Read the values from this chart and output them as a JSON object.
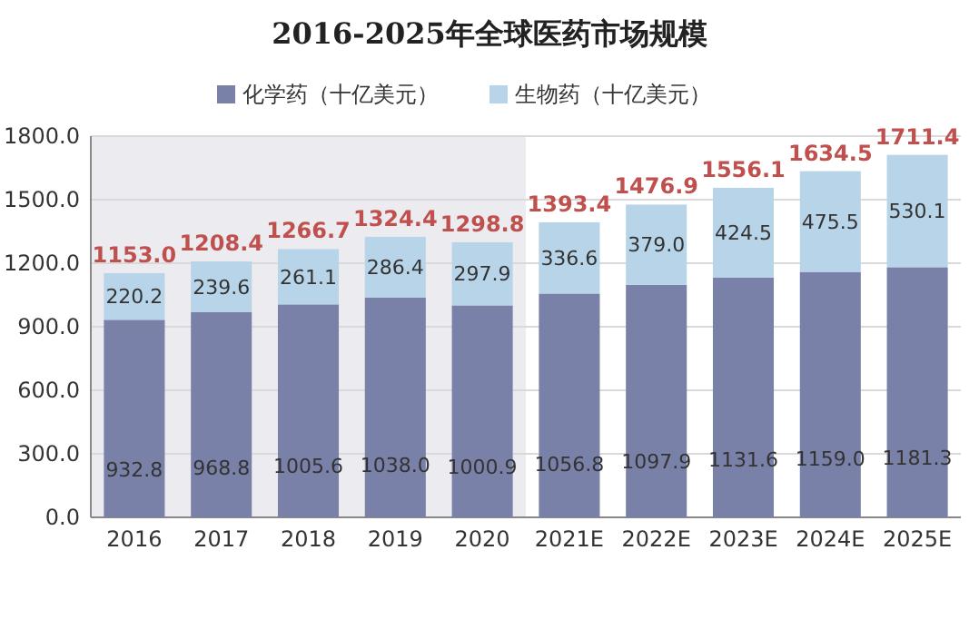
{
  "chart_data": {
    "type": "bar",
    "title": "2016-2025年全球医药市场规模",
    "stacked": true,
    "categories": [
      "2016",
      "2017",
      "2018",
      "2019",
      "2020",
      "2021E",
      "2022E",
      "2023E",
      "2024E",
      "2025E"
    ],
    "series": [
      {
        "name": "化学药（十亿美元）",
        "color": "#7a81a8",
        "values": [
          932.8,
          968.8,
          1005.6,
          1038,
          1000.9,
          1056.8,
          1097.9,
          1131.6,
          1159,
          1181.3
        ],
        "value_labels": [
          "932.8",
          "968.8",
          "1005.6",
          "1038.0",
          "1000.9",
          "1056.8",
          "1097.9",
          "1131.6",
          "1159.0",
          "1181.3"
        ]
      },
      {
        "name": "生物药（十亿美元）",
        "color": "#b8d4e8",
        "values": [
          220.2,
          239.6,
          261.1,
          286.4,
          297.9,
          336.6,
          379,
          424.5,
          475.5,
          530.1
        ],
        "value_labels": [
          "220.2",
          "239.6",
          "261.1",
          "286.4",
          "297.9",
          "336.6",
          "379.0",
          "424.5",
          "475.5",
          "530.1"
        ]
      }
    ],
    "totals": [
      "1153.0",
      "1208.4",
      "1266.7",
      "1324.4",
      "1298.8",
      "1393.4",
      "1476.9",
      "1556.1",
      "1634.5",
      "1711.4"
    ],
    "ylim": [
      0,
      1800
    ],
    "yticks": [
      {
        "value": 0,
        "label": "0.0"
      },
      {
        "value": 300,
        "label": "300.0"
      },
      {
        "value": 600,
        "label": "600.0"
      },
      {
        "value": 900,
        "label": "900.0"
      },
      {
        "value": 1200,
        "label": "1200.0"
      },
      {
        "value": 1500,
        "label": "1500.0"
      },
      {
        "value": 1800,
        "label": "1800.0"
      }
    ],
    "grid": "y",
    "legend": "top",
    "bands": [
      {
        "axis": "x",
        "from": "2016",
        "to": "2020",
        "color": "#ebebf0"
      }
    ]
  }
}
